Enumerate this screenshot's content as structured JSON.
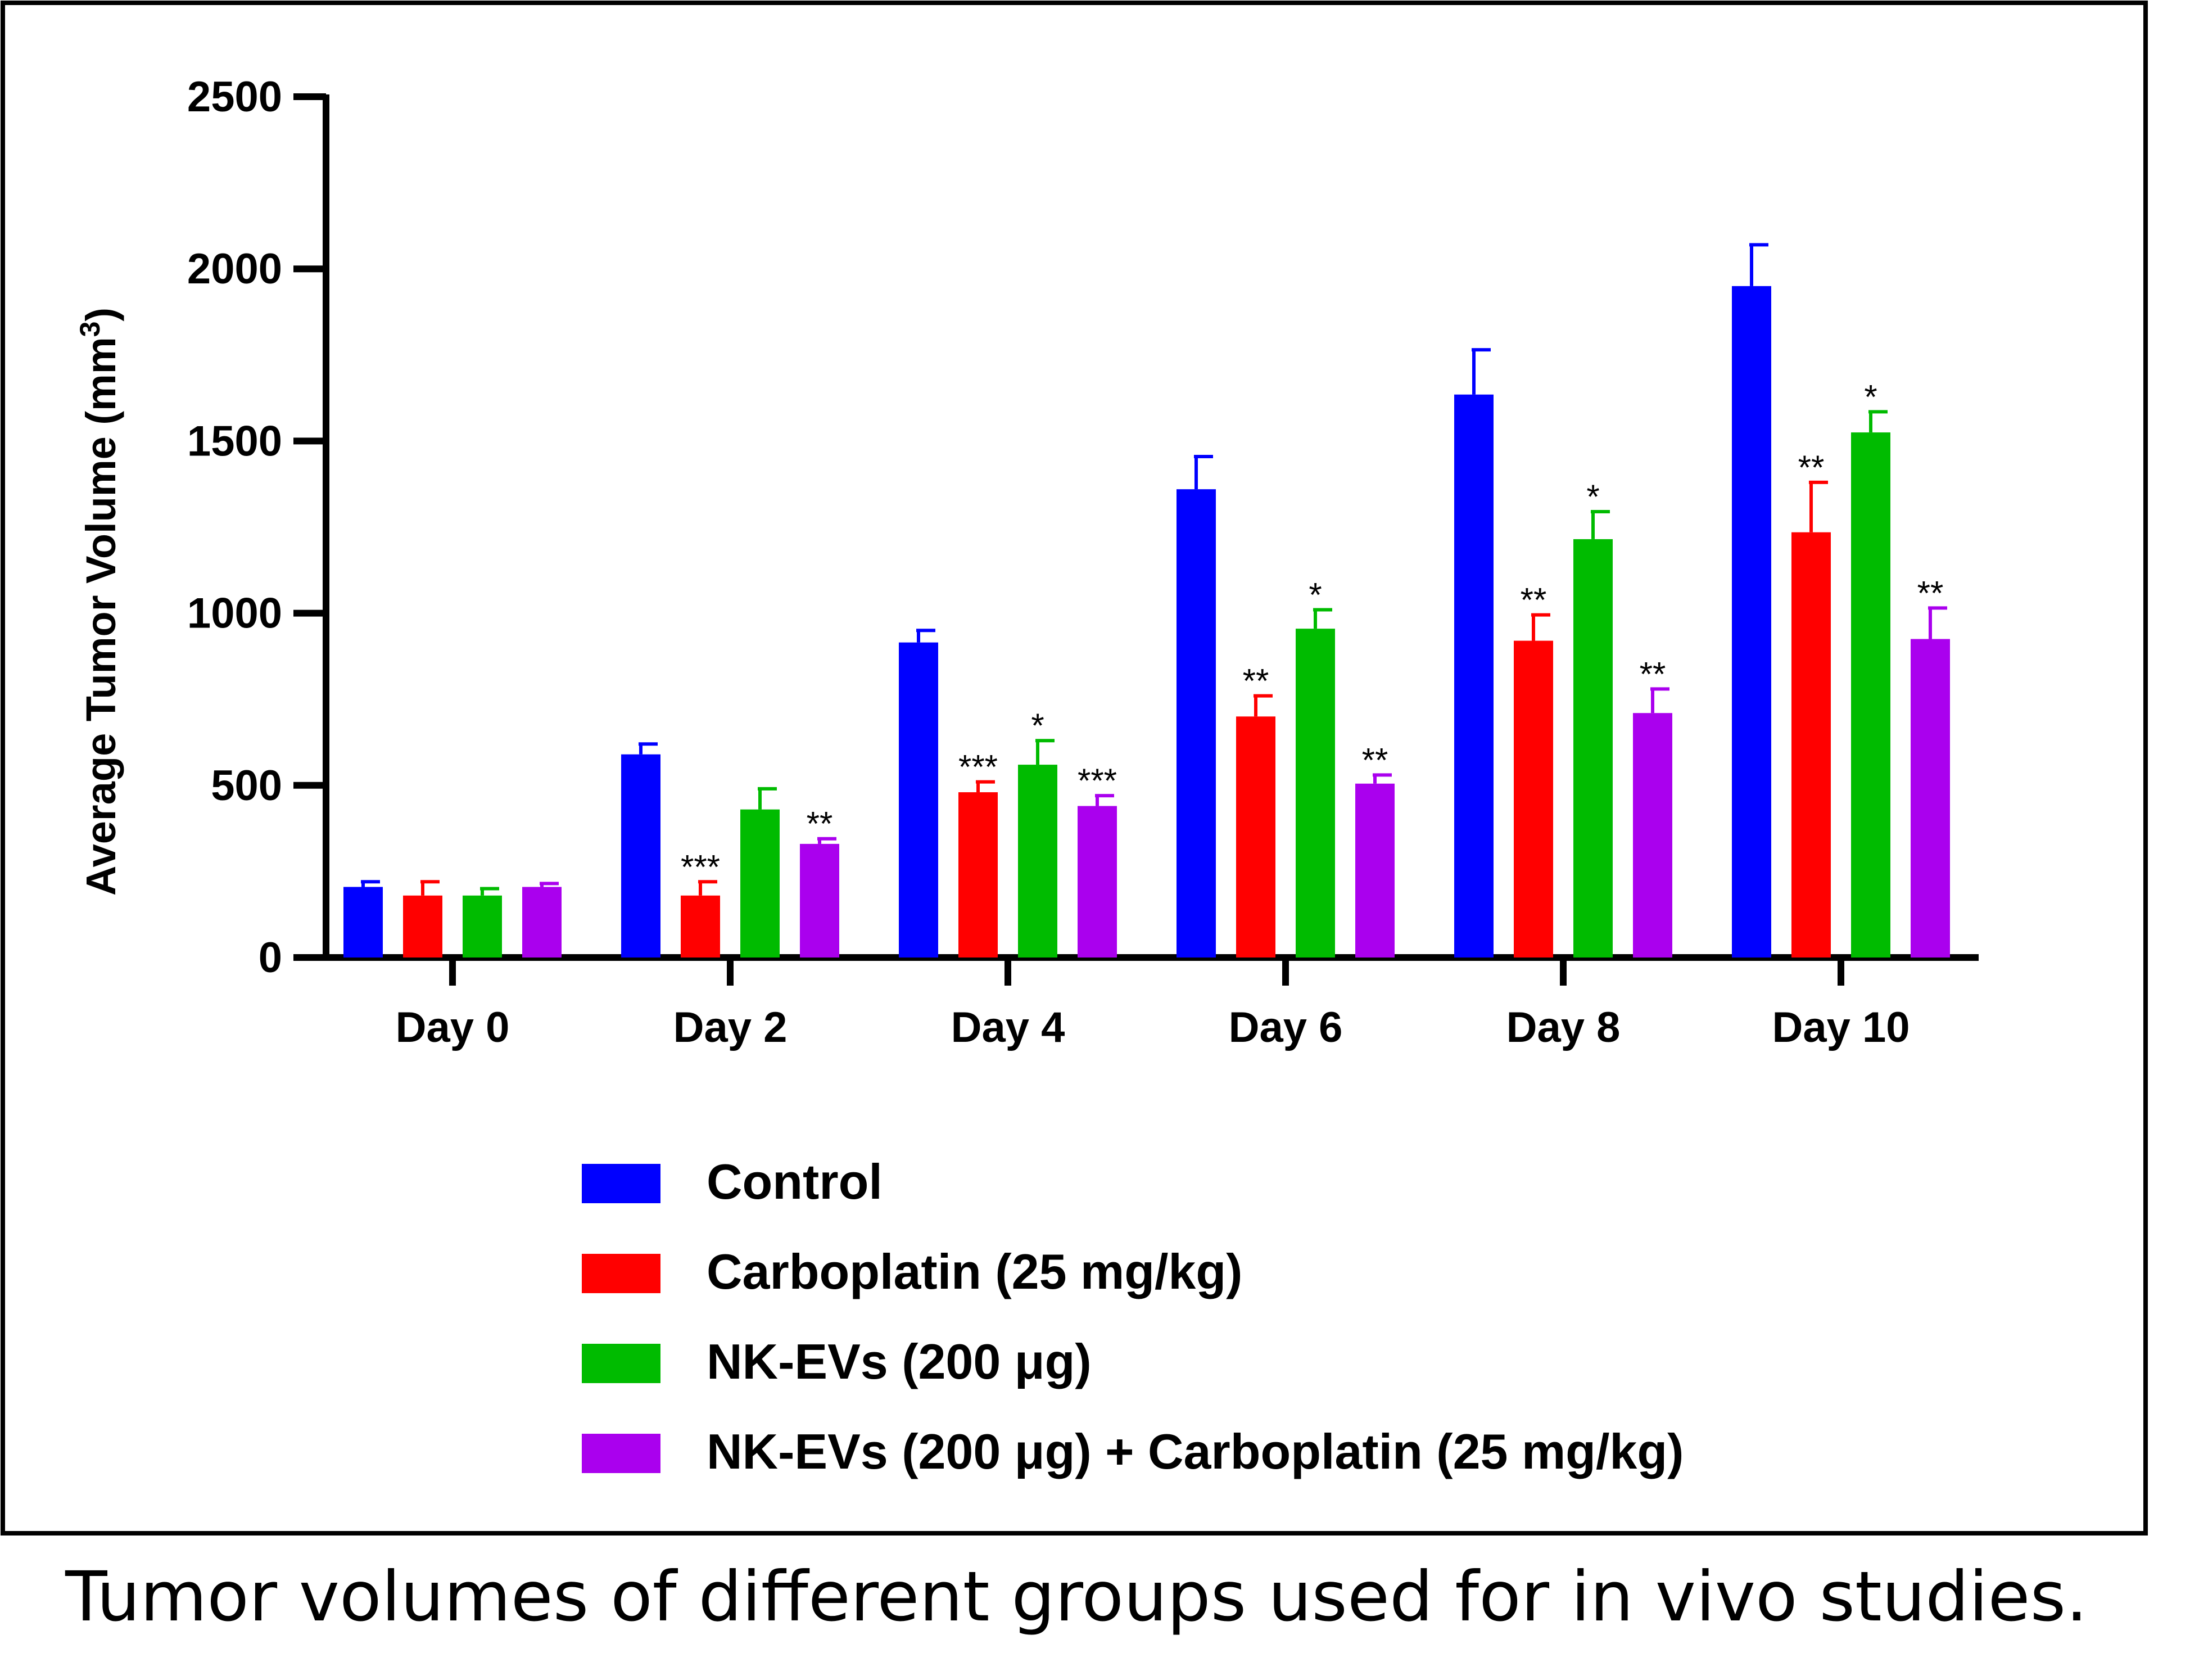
{
  "caption": "Tumor volumes of different groups used for in vivo studies.",
  "chart_data": {
    "type": "bar",
    "title": "",
    "xlabel": "",
    "ylabel": "Average Tumor Volume (mm",
    "ylabel_superscript": "3",
    "ylabel_close": ")",
    "ylim": [
      0,
      2500
    ],
    "yticks": [
      "0",
      "500",
      "1000",
      "1500",
      "2000",
      "2500"
    ],
    "categories": [
      "Day 0",
      "Day 2",
      "Day 4",
      "Day 6",
      "Day 8",
      "Day 10"
    ],
    "grid": false,
    "legend_position": "bottom",
    "series": [
      {
        "name": "Control",
        "color": "#0000ff",
        "values": [
          205,
          590,
          915,
          1360,
          1635,
          1950
        ],
        "errors": [
          15,
          30,
          35,
          95,
          130,
          120
        ],
        "significance": [
          "",
          "",
          "",
          "",
          "",
          ""
        ]
      },
      {
        "name": "Carboplatin (25 mg/kg)",
        "color": "#ff0000",
        "values": [
          180,
          180,
          480,
          700,
          920,
          1235
        ],
        "errors": [
          40,
          40,
          30,
          60,
          75,
          145
        ],
        "significance": [
          "",
          "***",
          "***",
          "**",
          "**",
          "**"
        ]
      },
      {
        "name": "NK-EVs (200 μg)",
        "color": "#00bb00",
        "values": [
          180,
          430,
          560,
          955,
          1215,
          1525
        ],
        "errors": [
          20,
          60,
          70,
          55,
          80,
          60
        ],
        "significance": [
          "",
          "",
          "*",
          "*",
          "*",
          "*"
        ]
      },
      {
        "name": "NK-EVs (200 μg) + Carboplatin (25 mg/kg)",
        "color": "#aa00ee",
        "values": [
          205,
          330,
          440,
          505,
          710,
          925
        ],
        "errors": [
          10,
          15,
          30,
          25,
          70,
          90
        ],
        "significance": [
          "",
          "**",
          "***",
          "**",
          "**",
          "**"
        ]
      }
    ]
  }
}
